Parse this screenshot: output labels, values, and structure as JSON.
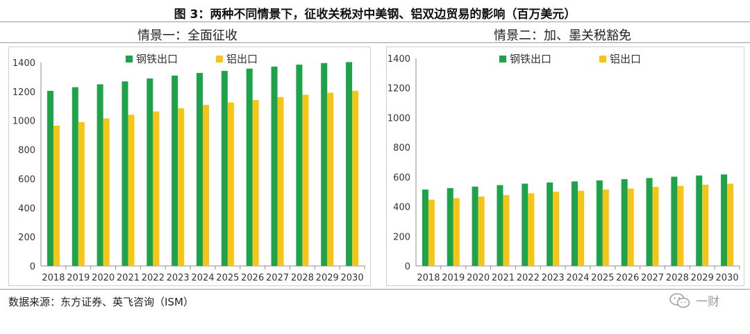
{
  "figure": {
    "title": "图 3：两种不同情景下，征收关税对中美钢、铝双边贸易的影响（百万美元）",
    "source": "数据来源：东方证券、英飞咨询（ISM）",
    "watermark": "一财"
  },
  "colors": {
    "steel": "#1fa34a",
    "aluminum": "#f5c518",
    "axis": "#8c8c8c",
    "text": "#333333"
  },
  "chart_data": [
    {
      "type": "bar",
      "title": "情景一：全面征收",
      "categories": [
        "2018",
        "2019",
        "2020",
        "2021",
        "2022",
        "2023",
        "2024",
        "2025",
        "2026",
        "2027",
        "2028",
        "2029",
        "2030"
      ],
      "series": [
        {
          "name": "钢铁出口",
          "values": [
            1205,
            1230,
            1250,
            1270,
            1290,
            1310,
            1328,
            1342,
            1358,
            1372,
            1385,
            1396,
            1403
          ]
        },
        {
          "name": "铝出口",
          "values": [
            965,
            990,
            1015,
            1040,
            1063,
            1085,
            1108,
            1125,
            1142,
            1162,
            1178,
            1192,
            1205
          ]
        }
      ],
      "ylim": [
        0,
        1400
      ],
      "yticks": [
        0,
        200,
        400,
        600,
        800,
        1000,
        1200,
        1400
      ],
      "legend": "top-center",
      "grid": false
    },
    {
      "type": "bar",
      "title": "情景二：加、墨关税豁免",
      "categories": [
        "2018",
        "2019",
        "2020",
        "2021",
        "2022",
        "2023",
        "2024",
        "2025",
        "2026",
        "2027",
        "2028",
        "2029",
        "2030"
      ],
      "series": [
        {
          "name": "钢铁出口",
          "values": [
            515,
            525,
            535,
            545,
            555,
            563,
            570,
            577,
            585,
            593,
            602,
            610,
            617
          ]
        },
        {
          "name": "铝出口",
          "values": [
            447,
            457,
            468,
            478,
            490,
            500,
            507,
            515,
            522,
            533,
            540,
            548,
            555
          ]
        }
      ],
      "ylim": [
        0,
        1400
      ],
      "yticks": [
        0,
        200,
        400,
        600,
        800,
        1000,
        1200,
        1400
      ],
      "legend": "top-center",
      "grid": false
    }
  ]
}
